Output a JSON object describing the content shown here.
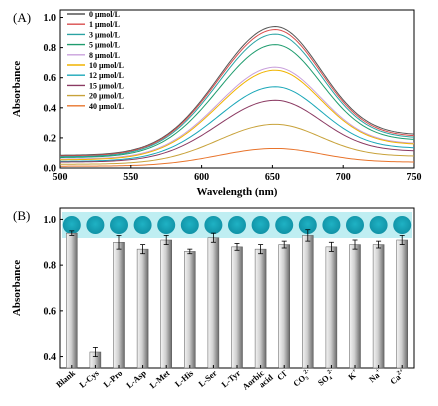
{
  "chart_data": [
    {
      "type": "line",
      "panel_label": "(A)",
      "xlabel": "Wavelength (nm)",
      "ylabel": "Absorbance",
      "xlim": [
        500,
        750
      ],
      "ylim": [
        0,
        1.05
      ],
      "xticks": [
        500,
        550,
        600,
        650,
        700,
        750
      ],
      "yticks": [
        0.0,
        0.2,
        0.4,
        0.6,
        0.8,
        1.0
      ],
      "tick_labels_x": [
        "500",
        "550",
        "600",
        "650",
        "700",
        "750"
      ],
      "tick_labels_y": [
        "0.0",
        "0.2",
        "0.4",
        "0.6",
        "0.8",
        "1.0"
      ],
      "legend_position": "top-left",
      "peak_wavelength": 652,
      "series": [
        {
          "name": "0 μmol/L",
          "color": "#555555",
          "peak": 0.94,
          "start": 0.085,
          "end": 0.225
        },
        {
          "name": "1 μmol/L",
          "color": "#d94c4c",
          "peak": 0.92,
          "start": 0.08,
          "end": 0.215
        },
        {
          "name": "3 μmol/L",
          "color": "#2aa3a3",
          "peak": 0.89,
          "start": 0.075,
          "end": 0.205
        },
        {
          "name": "5 μmol/L",
          "color": "#1f9c6e",
          "peak": 0.82,
          "start": 0.07,
          "end": 0.19
        },
        {
          "name": "8 μmol/L",
          "color": "#c9a0dc",
          "peak": 0.67,
          "start": 0.06,
          "end": 0.165
        },
        {
          "name": "10 μmol/L",
          "color": "#f0b400",
          "peak": 0.65,
          "start": 0.055,
          "end": 0.16
        },
        {
          "name": "12 μmol/L",
          "color": "#1aa7b8",
          "peak": 0.54,
          "start": 0.045,
          "end": 0.135
        },
        {
          "name": "15 μmol/L",
          "color": "#8b3a62",
          "peak": 0.45,
          "start": 0.04,
          "end": 0.115
        },
        {
          "name": "20 μmol/L",
          "color": "#c8a23a",
          "peak": 0.29,
          "start": 0.025,
          "end": 0.08
        },
        {
          "name": "40 μmol/L",
          "color": "#e8742c",
          "peak": 0.13,
          "start": 0.012,
          "end": 0.04
        }
      ]
    },
    {
      "type": "bar",
      "panel_label": "(B)",
      "ylabel": "Absorbance",
      "ylim": [
        0.35,
        1.05
      ],
      "yticks": [
        0.4,
        0.6,
        0.8,
        1.0
      ],
      "tick_labels_y": [
        "0.4",
        "0.6",
        "0.8",
        "1.0"
      ],
      "categories": [
        {
          "main": "Blank",
          "sup": ""
        },
        {
          "main": "L-Cys",
          "sup": ""
        },
        {
          "main": "L-Pro",
          "sup": ""
        },
        {
          "main": "L-Asp",
          "sup": ""
        },
        {
          "main": "L-Met",
          "sup": ""
        },
        {
          "main": "L-His",
          "sup": ""
        },
        {
          "main": "L-Ser",
          "sup": ""
        },
        {
          "main": "L-Tyr",
          "sup": ""
        },
        {
          "main": "Aorbic acid",
          "sup": ""
        },
        {
          "main": "Cl",
          "sup": "-"
        },
        {
          "main": "CO₃",
          "sup": "2-"
        },
        {
          "main": "SO₄",
          "sup": "2-"
        },
        {
          "main": "K",
          "sup": "+"
        },
        {
          "main": "Na",
          "sup": "+"
        },
        {
          "main": "Ca",
          "sup": "2+"
        }
      ],
      "values": [
        0.94,
        0.42,
        0.9,
        0.87,
        0.91,
        0.86,
        0.92,
        0.88,
        0.87,
        0.89,
        0.93,
        0.88,
        0.89,
        0.89,
        0.91
      ],
      "errors": [
        0.01,
        0.02,
        0.03,
        0.02,
        0.02,
        0.01,
        0.02,
        0.015,
        0.02,
        0.015,
        0.025,
        0.02,
        0.02,
        0.015,
        0.02
      ],
      "bar_gradient": [
        "#f4f4f4",
        "#6a6a6a"
      ],
      "inset_color": "#2bb8c6"
    }
  ]
}
